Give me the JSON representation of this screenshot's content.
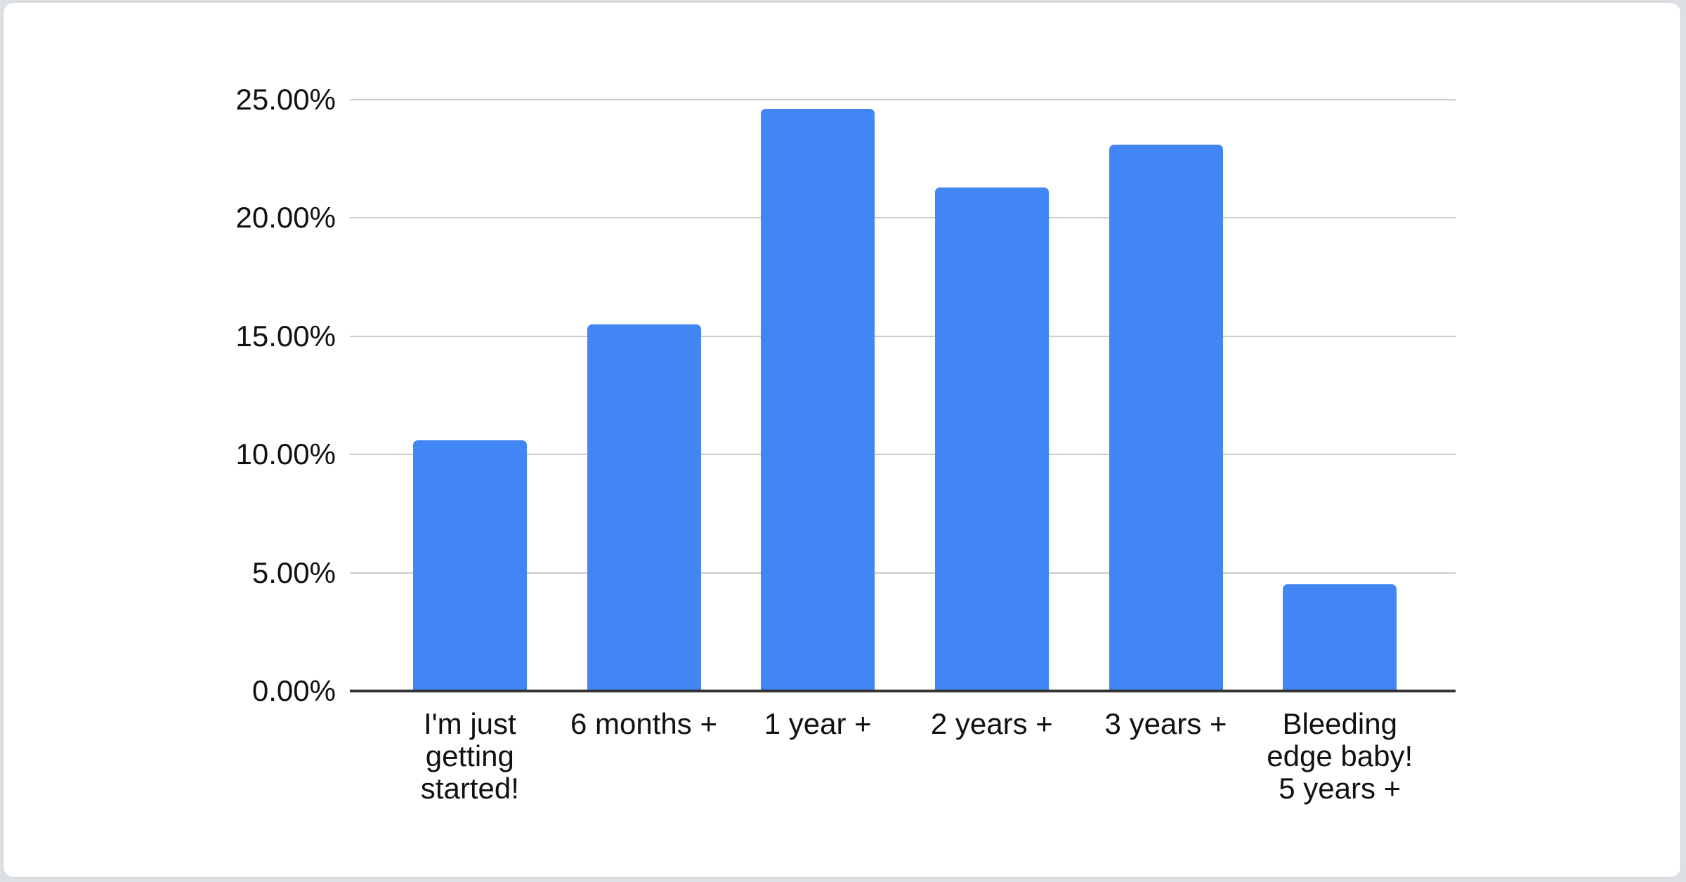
{
  "page": {
    "background_color": "#dde0e5",
    "card_background_color": "#ffffff",
    "card_border_color": "#d7dade"
  },
  "chart_data": {
    "type": "bar",
    "title": "",
    "categories": [
      "I'm just getting started!",
      "6 months +",
      "1 year +",
      "2 years +",
      "3 years +",
      "Bleeding edge baby! 5 years +"
    ],
    "category_lines": [
      [
        "I'm just",
        "getting",
        "started!"
      ],
      [
        "6 months +"
      ],
      [
        "1 year +"
      ],
      [
        "2 years +"
      ],
      [
        "3 years +"
      ],
      [
        "Bleeding",
        "edge baby!",
        "5 years +"
      ]
    ],
    "values": [
      10.6,
      15.5,
      24.6,
      21.3,
      23.1,
      4.5
    ],
    "value_unit": "%",
    "ylim": [
      0,
      25
    ],
    "yticks": [
      {
        "value": 0,
        "label": "0.00%"
      },
      {
        "value": 5,
        "label": "5.00%"
      },
      {
        "value": 10,
        "label": "10.00%"
      },
      {
        "value": 15,
        "label": "15.00%"
      },
      {
        "value": 20,
        "label": "20.00%"
      },
      {
        "value": 25,
        "label": "25.00%"
      }
    ],
    "grid": true,
    "legend": "none",
    "bar_color": "#4285f4",
    "gridline_color": "#cccccc",
    "baseline_color": "#333333",
    "text_color": "#111111"
  }
}
